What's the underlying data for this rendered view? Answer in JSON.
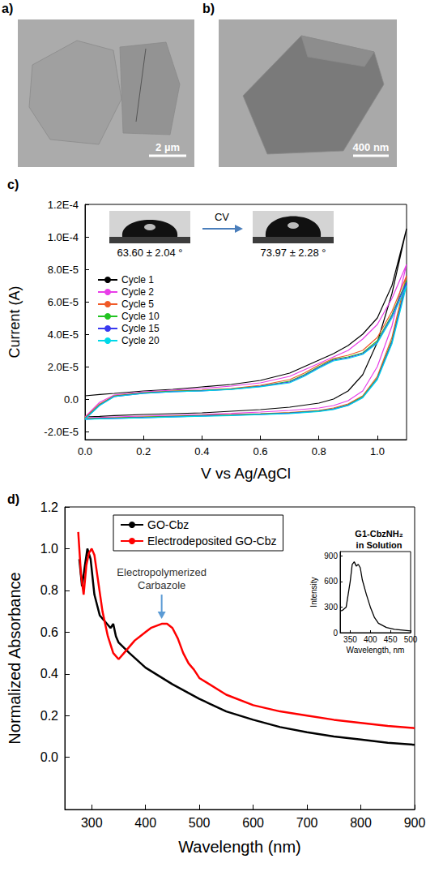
{
  "images": [
    {
      "title": "a)",
      "scale_bar": "2 µm"
    },
    {
      "title": "b)",
      "scale_bar": "400 nm"
    }
  ],
  "chart_data": [
    {
      "type": "line",
      "title": "c)",
      "x_label": "V vs Ag/AgCl",
      "y_label": "Current (A)",
      "grid": false,
      "legend": "left",
      "xlim": [
        0,
        1.1
      ],
      "xticks": [
        {
          "value": 0,
          "label": "0.0"
        },
        {
          "value": 0.2,
          "label": "0.2"
        },
        {
          "value": 0.4,
          "label": "0.4"
        },
        {
          "value": 0.6,
          "label": "0.6"
        },
        {
          "value": 0.8,
          "label": "0.8"
        },
        {
          "value": 1.0,
          "label": "1.0"
        }
      ],
      "ylim": [
        -2.5e-05,
        0.00012
      ],
      "yticks": [
        {
          "value": -2e-05,
          "label": "-2.0E-5"
        },
        {
          "value": 0,
          "label": "0.0"
        },
        {
          "value": 2e-05,
          "label": "2.0E-5"
        },
        {
          "value": 4e-05,
          "label": "4.0E-5"
        },
        {
          "value": 6e-05,
          "label": "6.0E-5"
        },
        {
          "value": 8e-05,
          "label": "8.0E-5"
        },
        {
          "value": 0.0001,
          "label": "1.0E-4"
        },
        {
          "value": 0.00012,
          "label": "1.2E-4"
        }
      ],
      "annotations": [
        {
          "text": "63.60 ± 2.04 °"
        },
        {
          "text": "CV"
        },
        {
          "text": "73.97 ± 2.28 °"
        }
      ],
      "x": [
        0,
        0.05,
        0.1,
        0.2,
        0.3,
        0.4,
        0.5,
        0.6,
        0.7,
        0.75,
        0.8,
        0.85,
        0.9,
        0.95,
        1.0,
        1.05,
        1.1,
        1.05,
        1.0,
        0.95,
        0.9,
        0.85,
        0.8,
        0.7,
        0.6,
        0.5,
        0.4,
        0.3,
        0.2,
        0.1,
        0.05,
        0
      ],
      "series": [
        {
          "name": "Cycle 1",
          "color": "#000000",
          "values": [
            2e-06,
            2.8e-06,
            3.5e-06,
            5e-06,
            6e-06,
            7.5e-06,
            9e-06,
            1.15e-05,
            1.6e-05,
            2e-05,
            2.4e-05,
            2.8e-05,
            3.3e-05,
            4e-05,
            5e-05,
            7e-05,
            0.000105,
            6.5e-05,
            3.5e-05,
            1.5e-05,
            5e-06,
            0,
            -2.5e-06,
            -5e-06,
            -6.5e-06,
            -7.5e-06,
            -8.5e-06,
            -9e-06,
            -9.5e-06,
            -1.02e-05,
            -1.07e-05,
            -1.1e-05
          ]
        },
        {
          "name": "Cycle 2",
          "color": "#e83ee8",
          "values": [
            -1.1e-05,
            -2e-06,
            2.5e-06,
            4.5e-06,
            5.5e-06,
            6.5e-06,
            8e-06,
            1e-05,
            1.4e-05,
            1.8e-05,
            2.2e-05,
            2.6e-05,
            3e-05,
            3.7e-05,
            4.6e-05,
            6.2e-05,
            8.3e-05,
            4.5e-05,
            2e-05,
            5e-06,
            -1e-06,
            -4e-06,
            -5.5e-06,
            -7e-06,
            -8e-06,
            -8.8e-06,
            -9.5e-06,
            -1e-05,
            -1.05e-05,
            -1.1e-05,
            -1.13e-05,
            -1.15e-05
          ]
        },
        {
          "name": "Cycle 5",
          "color": "#f05a28",
          "values": [
            -1.15e-05,
            -3e-06,
            2e-06,
            4e-06,
            5e-06,
            5.5e-06,
            6.5e-06,
            8.5e-06,
            1.2e-05,
            1.6e-05,
            2.1e-05,
            2.5e-05,
            2.7e-05,
            3e-05,
            3.8e-05,
            5.4e-05,
            7.6e-05,
            3.8e-05,
            1.4e-05,
            2e-06,
            -3e-06,
            -5.5e-06,
            -7e-06,
            -8.3e-06,
            -9e-06,
            -9.6e-06,
            -1e-05,
            -1.05e-05,
            -1.1e-05,
            -1.15e-05,
            -1.17e-05,
            -1.2e-05
          ]
        },
        {
          "name": "Cycle 10",
          "color": "#22c422",
          "values": [
            -1.2e-05,
            -3.5e-06,
            1.8e-06,
            3.8e-06,
            4.8e-06,
            5.3e-06,
            6.2e-06,
            8e-06,
            1.1e-05,
            1.5e-05,
            2e-05,
            2.45e-05,
            2.6e-05,
            2.85e-05,
            3.6e-05,
            5.2e-05,
            7.3e-05,
            3.6e-05,
            1.3e-05,
            1.5e-06,
            -3.5e-06,
            -6e-06,
            -7.3e-06,
            -8.5e-06,
            -9.2e-06,
            -9.8e-06,
            -1.02e-05,
            -1.07e-05,
            -1.12e-05,
            -1.17e-05,
            -1.19e-05,
            -1.22e-05
          ]
        },
        {
          "name": "Cycle 15",
          "color": "#3a3af0",
          "values": [
            -1.22e-05,
            -3.8e-06,
            1.6e-06,
            3.6e-06,
            4.6e-06,
            5.1e-06,
            6e-06,
            7.8e-06,
            1.05e-05,
            1.45e-05,
            1.95e-05,
            2.4e-05,
            2.55e-05,
            2.8e-05,
            3.5e-05,
            5.1e-05,
            7.2e-05,
            3.5e-05,
            1.25e-05,
            1e-06,
            -3.8e-06,
            -6.2e-06,
            -7.5e-06,
            -8.7e-06,
            -9.4e-06,
            -1e-05,
            -1.04e-05,
            -1.09e-05,
            -1.14e-05,
            -1.19e-05,
            -1.21e-05,
            -1.24e-05
          ]
        },
        {
          "name": "Cycle 20",
          "color": "#00d8e8",
          "values": [
            -1.24e-05,
            -4e-06,
            1.5e-06,
            3.5e-06,
            4.5e-06,
            5e-06,
            5.9e-06,
            7.6e-06,
            1e-05,
            1.4e-05,
            1.9e-05,
            2.35e-05,
            2.5e-05,
            2.75e-05,
            3.45e-05,
            5e-05,
            7e-05,
            3.4e-05,
            1.2e-05,
            8e-07,
            -4e-06,
            -6.4e-06,
            -7.7e-06,
            -8.9e-06,
            -9.6e-06,
            -1.02e-05,
            -1.06e-05,
            -1.11e-05,
            -1.16e-05,
            -1.2e-05,
            -1.22e-05,
            -1.25e-05
          ]
        }
      ]
    },
    {
      "type": "line",
      "title": "d)",
      "x_label": "Wavelength (nm)",
      "y_label": "Normalized Absorbance",
      "grid": false,
      "legend": "top",
      "xlim": [
        250,
        900
      ],
      "xticks": [
        300,
        400,
        500,
        600,
        700,
        800,
        900
      ],
      "ylim": [
        -0.25,
        1.2
      ],
      "yticks": [
        {
          "value": 0,
          "label": "0.0"
        },
        {
          "value": 0.2,
          "label": "0.2"
        },
        {
          "value": 0.4,
          "label": "0.4"
        },
        {
          "value": 0.6,
          "label": "0.6"
        },
        {
          "value": 0.8,
          "label": "0.8"
        },
        {
          "value": 1.0,
          "label": "1.0"
        },
        {
          "value": 1.2,
          "label": "1.2"
        }
      ],
      "annotations": [
        {
          "text": "Electropolymerized Carbazole",
          "x": 430,
          "y": 0.64
        }
      ],
      "series": [
        {
          "name": "GO-Cbz",
          "color": "#000000",
          "x": [
            277,
            282,
            288,
            292,
            298,
            305,
            315,
            325,
            335,
            340,
            345,
            350,
            370,
            400,
            450,
            500,
            550,
            600,
            650,
            700,
            750,
            800,
            850,
            900
          ],
          "values": [
            0.95,
            0.82,
            0.93,
            1.0,
            0.95,
            0.78,
            0.68,
            0.65,
            0.62,
            0.64,
            0.58,
            0.55,
            0.5,
            0.43,
            0.35,
            0.28,
            0.22,
            0.18,
            0.145,
            0.12,
            0.1,
            0.085,
            0.07,
            0.06
          ]
        },
        {
          "name": "Electrodeposited GO-Cbz",
          "color": "#ff0000",
          "x": [
            275,
            280,
            285,
            290,
            295,
            300,
            305,
            310,
            320,
            330,
            340,
            350,
            360,
            370,
            380,
            390,
            400,
            410,
            420,
            430,
            440,
            450,
            460,
            470,
            480,
            490,
            500,
            550,
            600,
            650,
            700,
            750,
            800,
            850,
            900
          ],
          "values": [
            1.08,
            0.88,
            0.78,
            0.92,
            0.98,
            1.0,
            0.97,
            0.88,
            0.7,
            0.58,
            0.5,
            0.47,
            0.5,
            0.53,
            0.56,
            0.58,
            0.6,
            0.62,
            0.63,
            0.64,
            0.64,
            0.62,
            0.57,
            0.5,
            0.45,
            0.42,
            0.38,
            0.3,
            0.25,
            0.22,
            0.2,
            0.18,
            0.165,
            0.15,
            0.14
          ]
        }
      ]
    },
    {
      "type": "line",
      "title": "G1-CbzNH₂ in Solution",
      "x_label": "Wavelength, nm",
      "y_label": "Intensity",
      "grid": false,
      "color": "#000000",
      "xlim": [
        325,
        500
      ],
      "xticks": [
        350,
        400,
        450,
        500
      ],
      "ylim": [
        0,
        950
      ],
      "yticks": [
        0,
        300,
        600,
        900
      ],
      "x": [
        325,
        330,
        340,
        350,
        355,
        360,
        365,
        370,
        375,
        380,
        390,
        400,
        410,
        420,
        440,
        460,
        480,
        500
      ],
      "values": [
        255,
        260,
        300,
        600,
        800,
        830,
        780,
        800,
        760,
        620,
        450,
        300,
        180,
        110,
        60,
        40,
        30,
        20
      ]
    }
  ]
}
